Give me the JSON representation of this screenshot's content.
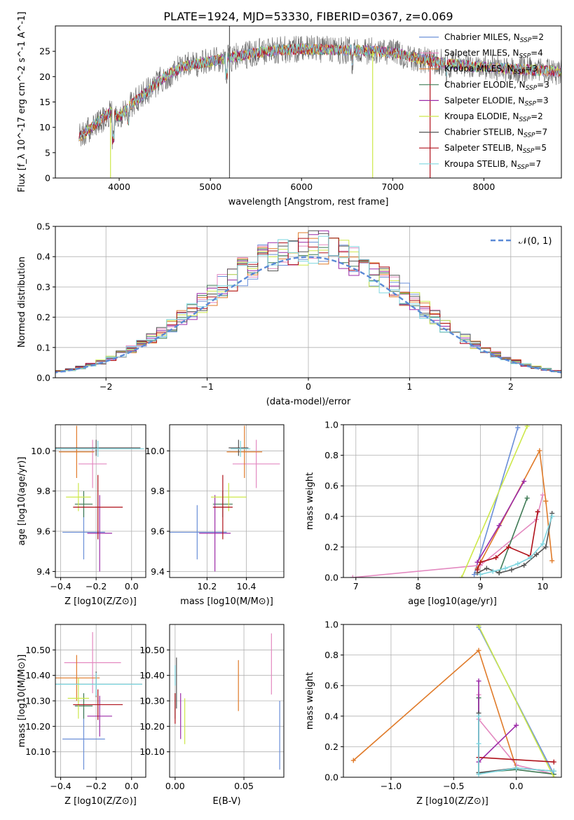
{
  "figure_title": "PLATE=1924, MJD=53330, FIBERID=0367, z=0.069",
  "models": [
    {
      "name": "Chabrier MILES",
      "nssp": "2",
      "color": "#6a8fd8"
    },
    {
      "name": "Salpeter MILES",
      "nssp": "4",
      "color": "#e389c0"
    },
    {
      "name": "Kroupa MILES",
      "nssp": "3",
      "color": "#e07b2a"
    },
    {
      "name": "Chabrier ELODIE",
      "nssp": "3",
      "color": "#3f7a55"
    },
    {
      "name": "Salpeter ELODIE",
      "nssp": "3",
      "color": "#9c2ba8"
    },
    {
      "name": "Kroupa ELODIE",
      "nssp": "2",
      "color": "#cde84a"
    },
    {
      "name": "Chabrier STELIB",
      "nssp": "7",
      "color": "#555555"
    },
    {
      "name": "Salpeter STELIB",
      "nssp": "5",
      "color": "#b0121b"
    },
    {
      "name": "Kroupa STELIB",
      "nssp": "7",
      "color": "#7fd6e0"
    }
  ],
  "chart_data": [
    {
      "id": "spectrum",
      "type": "line",
      "xlabel": "wavelength [Angstrom, rest frame]",
      "ylabel": "Flux [f_λ 10^-17 erg cm^-2 s^-1 A^-1]",
      "xlim": [
        3300,
        8850
      ],
      "ylim": [
        0,
        30
      ],
      "xticks": [
        4000,
        5000,
        6000,
        7000,
        8000
      ],
      "yticks": [
        0,
        5,
        10,
        15,
        20,
        25
      ],
      "grid": false,
      "legend": "upper right",
      "continuum": [
        [
          3560,
          8
        ],
        [
          3700,
          10
        ],
        [
          3900,
          13
        ],
        [
          4000,
          12
        ],
        [
          4100,
          14
        ],
        [
          4300,
          17
        ],
        [
          4500,
          20
        ],
        [
          4700,
          22
        ],
        [
          5000,
          23
        ],
        [
          5300,
          24
        ],
        [
          5600,
          25
        ],
        [
          6000,
          25.5
        ],
        [
          6300,
          25.3
        ],
        [
          6600,
          25.2
        ],
        [
          7000,
          24.8
        ],
        [
          7300,
          23.5
        ],
        [
          7600,
          22.5
        ],
        [
          7900,
          22
        ],
        [
          8300,
          21.5
        ],
        [
          8850,
          21
        ]
      ]
    },
    {
      "id": "residuals",
      "type": "histogram",
      "xlabel": "(data-model)/error",
      "ylabel": "Normed distribution",
      "xlim": [
        -2.5,
        2.5
      ],
      "ylim": [
        0,
        0.5
      ],
      "xticks": [
        -2,
        -1,
        0,
        1,
        2
      ],
      "yticks": [
        0.0,
        0.1,
        0.2,
        0.3,
        0.4,
        0.5
      ],
      "grid": true,
      "legend": "upper right",
      "reference_label": "𝒩(0, 1)",
      "reference_color": "#5b8ad6",
      "bin_width": 0.1
    },
    {
      "id": "age-vs-Z",
      "type": "errorbar",
      "xlabel": "Z [log10(Z/Z⊙)]",
      "ylabel": "age [log10(age/yr)]",
      "xlim": [
        -0.43,
        0.08
      ],
      "ylim": [
        9.37,
        10.13
      ],
      "xticks": [
        -0.4,
        -0.2,
        0.0
      ],
      "yticks": [
        9.4,
        9.6,
        9.8,
        10.0
      ],
      "grid": true,
      "points": [
        {
          "x": -0.27,
          "xerr": 0.12,
          "y": 9.595,
          "yerr": 0.135
        },
        {
          "x": -0.22,
          "xerr": 0.08,
          "y": 9.935,
          "yerr": 0.12
        },
        {
          "x": -0.31,
          "xerr": 0.1,
          "y": 9.995,
          "yerr": 0.13
        },
        {
          "x": -0.27,
          "xerr": 0.05,
          "y": 9.735,
          "yerr": 0.065
        },
        {
          "x": -0.18,
          "xerr": 0.07,
          "y": 9.59,
          "yerr": 0.19
        },
        {
          "x": -0.3,
          "xerr": 0.07,
          "y": 9.77,
          "yerr": 0.07
        },
        {
          "x": -0.2,
          "xerr": 0.25,
          "y": 10.015,
          "yerr": 0.04
        },
        {
          "x": -0.19,
          "xerr": 0.14,
          "y": 9.72,
          "yerr": 0.16
        },
        {
          "x": -0.19,
          "xerr": 0.26,
          "y": 10.01,
          "yerr": 0.04
        }
      ]
    },
    {
      "id": "age-vs-mass",
      "type": "errorbar",
      "xlabel": "mass [log10(M/M⊙)]",
      "ylabel": "",
      "xlim": [
        10.01,
        10.59
      ],
      "ylim": [
        9.37,
        10.13
      ],
      "xticks": [
        10.2,
        10.4
      ],
      "yticks": [
        9.4,
        9.6,
        9.8,
        10.0
      ],
      "grid": true,
      "points": [
        {
          "x": 10.15,
          "xerr": 0.15,
          "y": 9.595,
          "yerr": 0.135
        },
        {
          "x": 10.45,
          "xerr": 0.12,
          "y": 9.935,
          "yerr": 0.12
        },
        {
          "x": 10.39,
          "xerr": 0.09,
          "y": 9.995,
          "yerr": 0.13
        },
        {
          "x": 10.28,
          "xerr": 0.05,
          "y": 9.735,
          "yerr": 0.065
        },
        {
          "x": 10.24,
          "xerr": 0.08,
          "y": 9.59,
          "yerr": 0.19
        },
        {
          "x": 10.31,
          "xerr": 0.09,
          "y": 9.77,
          "yerr": 0.07
        },
        {
          "x": 10.36,
          "xerr": 0.05,
          "y": 10.015,
          "yerr": 0.04
        },
        {
          "x": 10.28,
          "xerr": 0.05,
          "y": 9.72,
          "yerr": 0.16
        },
        {
          "x": 10.37,
          "xerr": 0.05,
          "y": 10.01,
          "yerr": 0.04
        }
      ]
    },
    {
      "id": "mass-weight-vs-age",
      "type": "line",
      "xlabel": "age [log10(age/yr)]",
      "ylabel": "mass weight",
      "xlim": [
        6.8,
        10.3
      ],
      "ylim": [
        0,
        1.0
      ],
      "xticks": [
        7,
        8,
        9,
        10
      ],
      "yticks": [
        0.0,
        0.2,
        0.4,
        0.6,
        0.8,
        1.0
      ],
      "grid": true,
      "series": [
        {
          "points": [
            [
              8.9,
              0.02
            ],
            [
              9.6,
              0.98
            ]
          ]
        },
        {
          "points": [
            [
              6.95,
              0.0
            ],
            [
              9.0,
              0.08
            ],
            [
              9.9,
              0.38
            ],
            [
              10.0,
              0.54
            ]
          ]
        },
        {
          "points": [
            [
              8.95,
              0.06
            ],
            [
              9.95,
              0.83
            ],
            [
              10.05,
              0.5
            ],
            [
              10.15,
              0.11
            ]
          ]
        },
        {
          "points": [
            [
              9.3,
              0.03
            ],
            [
              9.75,
              0.52
            ]
          ]
        },
        {
          "points": [
            [
              8.95,
              0.1
            ],
            [
              9.3,
              0.34
            ],
            [
              9.7,
              0.63
            ]
          ]
        },
        {
          "points": [
            [
              8.7,
              0.0
            ],
            [
              9.75,
              0.99
            ]
          ]
        },
        {
          "points": [
            [
              8.95,
              0.03
            ],
            [
              9.1,
              0.06
            ],
            [
              9.3,
              0.03
            ],
            [
              9.5,
              0.05
            ],
            [
              9.7,
              0.08
            ],
            [
              9.9,
              0.15
            ],
            [
              10.05,
              0.2
            ],
            [
              10.15,
              0.42
            ]
          ]
        },
        {
          "points": [
            [
              8.95,
              0.05
            ],
            [
              9.0,
              0.1
            ],
            [
              9.25,
              0.13
            ],
            [
              9.45,
              0.2
            ],
            [
              9.8,
              0.14
            ],
            [
              9.92,
              0.43
            ]
          ]
        },
        {
          "points": [
            [
              9.0,
              0.02
            ],
            [
              9.2,
              0.04
            ],
            [
              9.4,
              0.06
            ],
            [
              9.6,
              0.09
            ],
            [
              9.8,
              0.13
            ],
            [
              10.0,
              0.22
            ],
            [
              10.15,
              0.4
            ]
          ]
        }
      ]
    },
    {
      "id": "mass-vs-Z",
      "type": "errorbar",
      "xlabel": "Z [log10(Z/Z⊙)]",
      "ylabel": "mass [log10(M/M⊙)]",
      "xlim": [
        -0.43,
        0.08
      ],
      "ylim": [
        10.0,
        10.6
      ],
      "xticks": [
        -0.4,
        -0.2,
        0.0
      ],
      "yticks": [
        10.1,
        10.2,
        10.3,
        10.4,
        10.5
      ],
      "grid": true,
      "points": [
        {
          "x": -0.27,
          "xerr": 0.12,
          "y": 10.15,
          "yerr": 0.12
        },
        {
          "x": -0.22,
          "xerr": 0.16,
          "y": 10.45,
          "yerr": 0.12
        },
        {
          "x": -0.31,
          "xerr": 0.13,
          "y": 10.39,
          "yerr": 0.09
        },
        {
          "x": -0.27,
          "xerr": 0.05,
          "y": 10.28,
          "yerr": 0.05
        },
        {
          "x": -0.18,
          "xerr": 0.07,
          "y": 10.24,
          "yerr": 0.08
        },
        {
          "x": -0.3,
          "xerr": 0.06,
          "y": 10.31,
          "yerr": 0.08
        },
        {
          "x": -0.2,
          "xerr": 0.26,
          "y": 10.365,
          "yerr": 0.05
        },
        {
          "x": -0.19,
          "xerr": 0.14,
          "y": 10.285,
          "yerr": 0.06
        },
        {
          "x": -0.2,
          "xerr": 0.26,
          "y": 10.365,
          "yerr": 0.045
        }
      ]
    },
    {
      "id": "mass-vs-EBV",
      "type": "errorbar",
      "xlabel": "E(B-V)",
      "ylabel": "",
      "xlim": [
        -0.004,
        0.079
      ],
      "ylim": [
        10.0,
        10.6
      ],
      "xticks": [
        0.0,
        0.05
      ],
      "yticks": [
        10.1,
        10.2,
        10.3,
        10.4,
        10.5
      ],
      "grid": true,
      "points": [
        {
          "x": 0.076,
          "xerr": 0,
          "y": 10.165,
          "yerr": 0.135
        },
        {
          "x": 0.07,
          "xerr": 0,
          "y": 10.445,
          "yerr": 0.12
        },
        {
          "x": 0.046,
          "xerr": 0,
          "y": 10.36,
          "yerr": 0.1
        },
        {
          "x": 0.0,
          "xerr": 0,
          "y": 10.28,
          "yerr": 0.05
        },
        {
          "x": 0.004,
          "xerr": 0,
          "y": 10.24,
          "yerr": 0.09
        },
        {
          "x": 0.007,
          "xerr": 0,
          "y": 10.22,
          "yerr": 0.09
        },
        {
          "x": 0.001,
          "xerr": 0,
          "y": 10.37,
          "yerr": 0.1
        },
        {
          "x": 0.0,
          "xerr": 0,
          "y": 10.27,
          "yerr": 0.06
        },
        {
          "x": 0.0,
          "xerr": 0,
          "y": 10.4,
          "yerr": 0.04
        }
      ]
    },
    {
      "id": "mass-weight-vs-Z",
      "type": "line",
      "xlabel": "Z [log10(Z/Z⊙)]",
      "ylabel": "mass weight",
      "xlim": [
        -1.38,
        0.36
      ],
      "ylim": [
        0,
        1.0
      ],
      "xticks": [
        -1.0,
        -0.5,
        0.0
      ],
      "yticks": [
        0.0,
        0.2,
        0.4,
        0.6,
        0.8,
        1.0
      ],
      "grid": true,
      "series": [
        {
          "points": [
            [
              -0.3,
              0.98
            ],
            [
              0.3,
              0.02
            ]
          ]
        },
        {
          "points": [
            [
              -0.3,
              0.54
            ],
            [
              -0.3,
              0.38
            ],
            [
              0.0,
              0.08
            ],
            [
              0.3,
              0.02
            ]
          ]
        },
        {
          "points": [
            [
              -1.3,
              0.11
            ],
            [
              -0.3,
              0.83
            ],
            [
              0.0,
              0.06
            ]
          ]
        },
        {
          "points": [
            [
              -0.3,
              0.52
            ],
            [
              -0.3,
              0.03
            ],
            [
              0.0,
              0.05
            ],
            [
              0.3,
              0.02
            ]
          ]
        },
        {
          "points": [
            [
              -0.3,
              0.63
            ],
            [
              -0.3,
              0.1
            ],
            [
              0.0,
              0.34
            ]
          ]
        },
        {
          "points": [
            [
              -0.3,
              0.99
            ],
            [
              0.3,
              0.0
            ]
          ]
        },
        {
          "points": [
            [
              -0.3,
              0.42
            ],
            [
              -0.3,
              0.03
            ],
            [
              0.0,
              0.06
            ],
            [
              0.3,
              0.04
            ]
          ]
        },
        {
          "points": [
            [
              -0.3,
              0.13
            ],
            [
              0.3,
              0.1
            ]
          ]
        },
        {
          "points": [
            [
              -0.3,
              0.4
            ],
            [
              -0.3,
              0.22
            ],
            [
              -0.3,
              0.02
            ],
            [
              0.0,
              0.06
            ],
            [
              0.3,
              0.04
            ]
          ]
        }
      ]
    }
  ]
}
